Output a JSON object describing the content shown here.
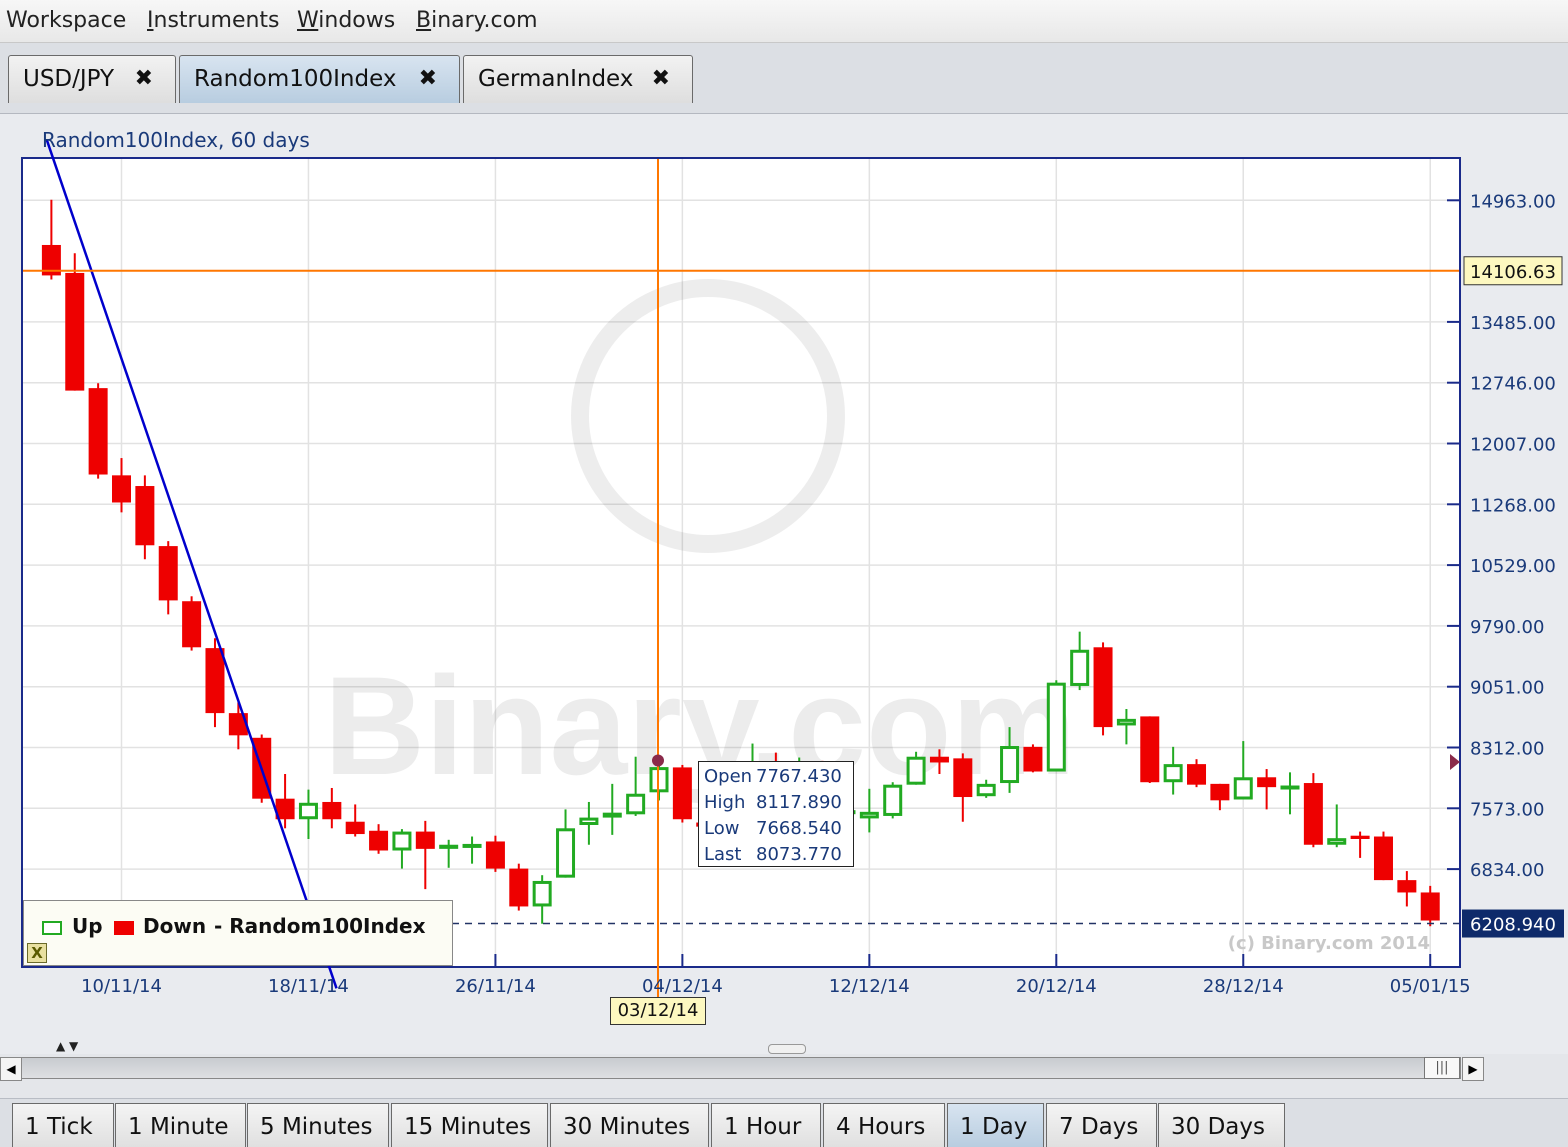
{
  "menubar": {
    "items": [
      {
        "label": "Workspace",
        "accel": ""
      },
      {
        "label": "Instruments",
        "accel": "I"
      },
      {
        "label": "Windows",
        "accel": "W"
      },
      {
        "label": "Binary.com",
        "accel": "B"
      }
    ]
  },
  "tabs": [
    {
      "label": "USD/JPY",
      "active": false
    },
    {
      "label": "Random100Index",
      "active": true
    },
    {
      "label": "GermanIndex",
      "active": false
    }
  ],
  "close_glyph": "✖",
  "chart": {
    "caption": "Random100Index, 60 days",
    "watermark": "Binary.com",
    "copyright": "(c) Binary.com 2014",
    "crosshair_price": "14106.63",
    "crosshair_price_value": 14106.63,
    "crosshair_date": "03/12/14",
    "last_price": "6208.940",
    "last_price_value": 6208.94,
    "tooltip": {
      "rows": [
        {
          "label": "Open",
          "value": "7767.430"
        },
        {
          "label": "High",
          "value": "8117.890"
        },
        {
          "label": "Low",
          "value": "7668.540"
        },
        {
          "label": "Last",
          "value": "8073.770"
        }
      ]
    },
    "legend": {
      "up": "Up",
      "down": "Down",
      "series": "- Random100Index",
      "close": "X"
    },
    "colors": {
      "up": "#22aa22",
      "down": "#ee0000",
      "trendline": "#0000cc",
      "crosshair": "#ff7700",
      "axis": "#1a3a7a"
    }
  },
  "chart_data": {
    "type": "candlestick",
    "title": "Random100Index, 60 days",
    "ylim": [
      5950,
      15700
    ],
    "y_ticks": [
      "14963.00",
      "13485.00",
      "12746.00",
      "12007.00",
      "11268.00",
      "10529.00",
      "9790.00",
      "9051.00",
      "8312.00",
      "7573.00",
      "6834.00"
    ],
    "y_tick_values": [
      14963,
      13485,
      12746,
      12007,
      11268,
      10529,
      9790,
      9051,
      8312,
      7573,
      6834
    ],
    "x_ticks": [
      "10/11/14",
      "18/11/14",
      "26/11/14",
      "04/12/14",
      "12/12/14",
      "20/12/14",
      "28/12/14",
      "05/01/15"
    ],
    "x_tick_days": [
      0,
      8,
      16,
      24,
      32,
      40,
      48,
      56
    ],
    "candles": [
      {
        "day": -3,
        "o": 14420,
        "h": 14970,
        "l": 14000,
        "c": 14050
      },
      {
        "day": -2,
        "o": 14080,
        "h": 14320,
        "l": 12650,
        "c": 12650
      },
      {
        "day": -1,
        "o": 12680,
        "h": 12740,
        "l": 11580,
        "c": 11630
      },
      {
        "day": 0,
        "o": 11620,
        "h": 11830,
        "l": 11170,
        "c": 11290
      },
      {
        "day": 1,
        "o": 11490,
        "h": 11620,
        "l": 10600,
        "c": 10770
      },
      {
        "day": 2,
        "o": 10760,
        "h": 10820,
        "l": 9930,
        "c": 10100
      },
      {
        "day": 3,
        "o": 10090,
        "h": 10150,
        "l": 9490,
        "c": 9530
      },
      {
        "day": 4,
        "o": 9520,
        "h": 9640,
        "l": 8560,
        "c": 8730
      },
      {
        "day": 5,
        "o": 8730,
        "h": 8860,
        "l": 8290,
        "c": 8460
      },
      {
        "day": 6,
        "o": 8430,
        "h": 8470,
        "l": 7640,
        "c": 7690
      },
      {
        "day": 7,
        "o": 7690,
        "h": 7990,
        "l": 7330,
        "c": 7440
      },
      {
        "day": 8,
        "o": 7440,
        "h": 7800,
        "l": 7200,
        "c": 7640
      },
      {
        "day": 9,
        "o": 7650,
        "h": 7820,
        "l": 7330,
        "c": 7440
      },
      {
        "day": 10,
        "o": 7410,
        "h": 7620,
        "l": 7230,
        "c": 7260
      },
      {
        "day": 11,
        "o": 7300,
        "h": 7380,
        "l": 7020,
        "c": 7060
      },
      {
        "day": 12,
        "o": 7060,
        "h": 7320,
        "l": 6840,
        "c": 7290
      },
      {
        "day": 13,
        "o": 7290,
        "h": 7420,
        "l": 6590,
        "c": 7080
      },
      {
        "day": 14,
        "o": 7080,
        "h": 7190,
        "l": 6850,
        "c": 7130
      },
      {
        "day": 15,
        "o": 7120,
        "h": 7230,
        "l": 6900,
        "c": 7140
      },
      {
        "day": 16,
        "o": 7170,
        "h": 7240,
        "l": 6800,
        "c": 6840
      },
      {
        "day": 17,
        "o": 6840,
        "h": 6900,
        "l": 6330,
        "c": 6380
      },
      {
        "day": 18,
        "o": 6380,
        "h": 6760,
        "l": 6170,
        "c": 6690
      },
      {
        "day": 19,
        "o": 6730,
        "h": 7560,
        "l": 6730,
        "c": 7330
      },
      {
        "day": 20,
        "o": 7370,
        "h": 7650,
        "l": 7130,
        "c": 7460
      },
      {
        "day": 21,
        "o": 7460,
        "h": 7870,
        "l": 7250,
        "c": 7520
      },
      {
        "day": 22,
        "o": 7500,
        "h": 8200,
        "l": 7480,
        "c": 7750
      },
      {
        "day": 23,
        "o": 7767.43,
        "h": 8117.89,
        "l": 7668.54,
        "c": 8073.77
      },
      {
        "day": 24,
        "o": 8070,
        "h": 8100,
        "l": 7400,
        "c": 7440
      },
      {
        "day": 25,
        "o": 7400,
        "h": 7830,
        "l": 7300,
        "c": 7350
      },
      {
        "day": 26,
        "o": 7350,
        "h": 7960,
        "l": 7300,
        "c": 7870
      },
      {
        "day": 27,
        "o": 7870,
        "h": 8360,
        "l": 7740,
        "c": 8010
      },
      {
        "day": 28,
        "o": 8010,
        "h": 8250,
        "l": 7560,
        "c": 7670
      },
      {
        "day": 29,
        "o": 7670,
        "h": 8190,
        "l": 7580,
        "c": 8000
      },
      {
        "day": 30,
        "o": 8000,
        "h": 8150,
        "l": 7340,
        "c": 7620
      },
      {
        "day": 31,
        "o": 7520,
        "h": 7720,
        "l": 7300,
        "c": 7550
      },
      {
        "day": 32,
        "o": 7450,
        "h": 7810,
        "l": 7280,
        "c": 7530
      },
      {
        "day": 33,
        "o": 7480,
        "h": 7890,
        "l": 7450,
        "c": 7860
      },
      {
        "day": 34,
        "o": 7860,
        "h": 8260,
        "l": 7860,
        "c": 8200
      },
      {
        "day": 35,
        "o": 8200,
        "h": 8290,
        "l": 7990,
        "c": 8130
      },
      {
        "day": 36,
        "o": 8180,
        "h": 8240,
        "l": 7410,
        "c": 7710
      },
      {
        "day": 37,
        "o": 7720,
        "h": 7920,
        "l": 7700,
        "c": 7870
      },
      {
        "day": 38,
        "o": 7880,
        "h": 8560,
        "l": 7760,
        "c": 8330
      },
      {
        "day": 39,
        "o": 8320,
        "h": 8350,
        "l": 8010,
        "c": 8020
      },
      {
        "day": 40,
        "o": 8020,
        "h": 9130,
        "l": 8020,
        "c": 9100
      },
      {
        "day": 41,
        "o": 9060,
        "h": 9720,
        "l": 9010,
        "c": 9500
      },
      {
        "day": 42,
        "o": 9530,
        "h": 9590,
        "l": 8460,
        "c": 8560
      },
      {
        "day": 43,
        "o": 8580,
        "h": 8780,
        "l": 8350,
        "c": 8660
      },
      {
        "day": 44,
        "o": 8690,
        "h": 8690,
        "l": 7880,
        "c": 7890
      },
      {
        "day": 45,
        "o": 7890,
        "h": 8320,
        "l": 7740,
        "c": 8110
      },
      {
        "day": 46,
        "o": 8110,
        "h": 8170,
        "l": 7830,
        "c": 7860
      },
      {
        "day": 47,
        "o": 7870,
        "h": 7870,
        "l": 7550,
        "c": 7670
      },
      {
        "day": 48,
        "o": 7680,
        "h": 8390,
        "l": 7680,
        "c": 7950
      },
      {
        "day": 49,
        "o": 7950,
        "h": 8050,
        "l": 7560,
        "c": 7830
      },
      {
        "day": 50,
        "o": 7840,
        "h": 8010,
        "l": 7500,
        "c": 7850
      },
      {
        "day": 51,
        "o": 7880,
        "h": 8000,
        "l": 7100,
        "c": 7130
      },
      {
        "day": 52,
        "o": 7130,
        "h": 7620,
        "l": 7100,
        "c": 7210
      },
      {
        "day": 53,
        "o": 7240,
        "h": 7290,
        "l": 6970,
        "c": 7200
      },
      {
        "day": 54,
        "o": 7230,
        "h": 7290,
        "l": 6700,
        "c": 6700
      },
      {
        "day": 55,
        "o": 6700,
        "h": 6810,
        "l": 6380,
        "c": 6550
      },
      {
        "day": 56,
        "o": 6550,
        "h": 6630,
        "l": 6140,
        "c": 6208.94
      }
    ],
    "trendline": [
      {
        "day": -3.2,
        "y": 15700
      },
      {
        "day": 9.2,
        "y": 6540
      }
    ]
  }
}
